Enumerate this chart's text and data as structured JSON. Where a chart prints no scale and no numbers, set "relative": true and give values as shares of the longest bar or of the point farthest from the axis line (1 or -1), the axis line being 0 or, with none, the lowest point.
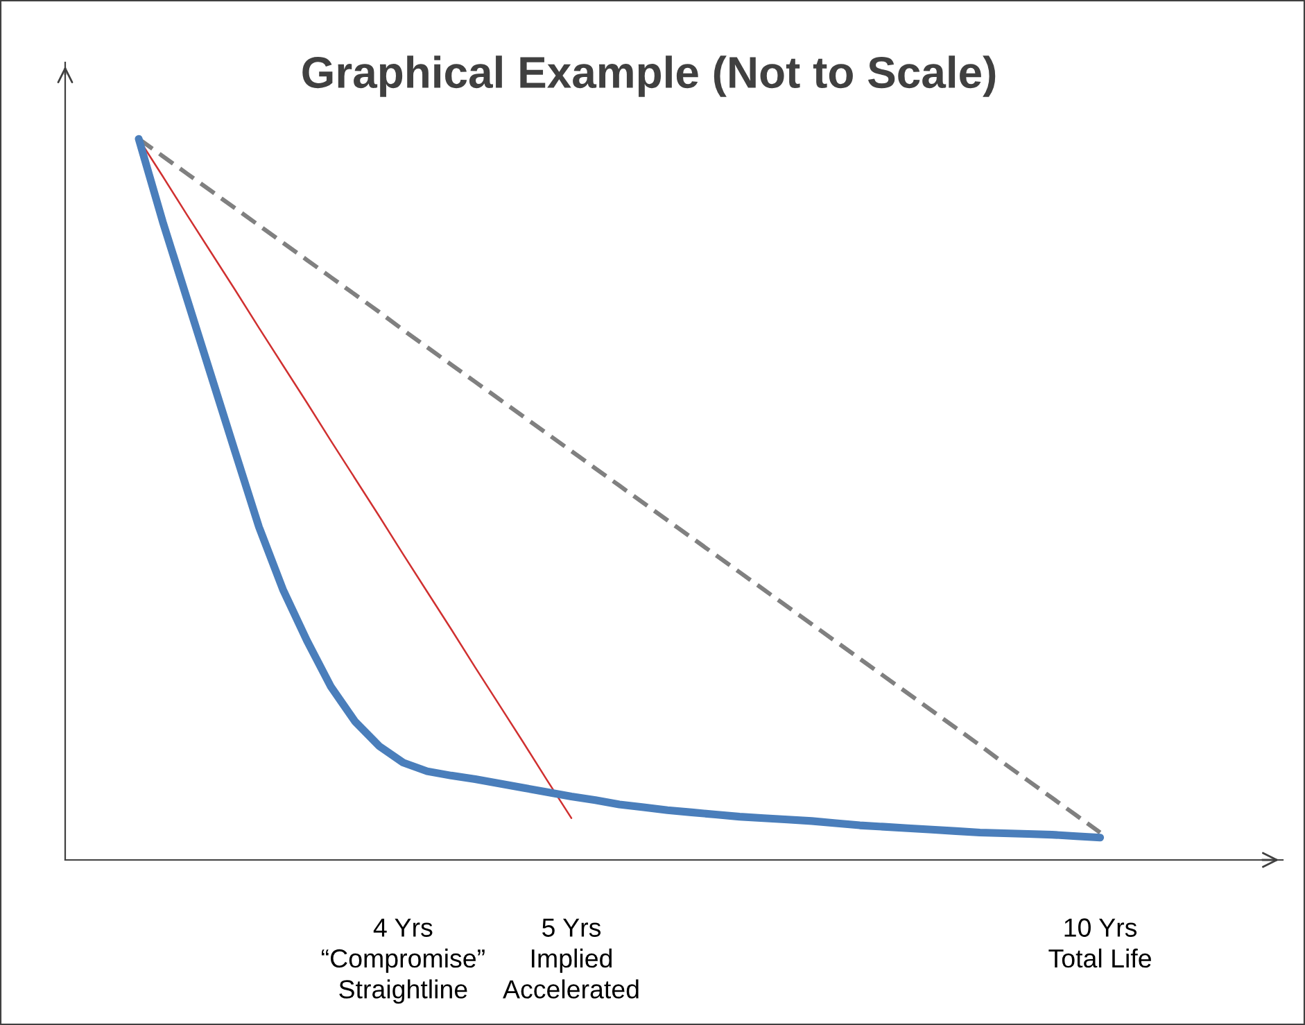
{
  "chart_data": {
    "type": "line",
    "title": "Graphical Example (Not to Scale)",
    "relative": true,
    "grid": false,
    "legend": false,
    "marker": "none",
    "categories": [
      null,
      null,
      null,
      null,
      null,
      null,
      null,
      null,
      null,
      null,
      null,
      "4 Yrs\n“Compromise”\nStraightline",
      null,
      null,
      null,
      null,
      null,
      null,
      "5 Yrs\nImplied\nAccelerated",
      null,
      null,
      null,
      null,
      null,
      null,
      null,
      null,
      null,
      null,
      null,
      null,
      null,
      null,
      null,
      null,
      null,
      null,
      null,
      null,
      null,
      "10 Yrs\nTotal Life"
    ],
    "series": [
      {
        "color": "#808080",
        "line_style": "dashed",
        "values": [
          1.0,
          0.976,
          0.952,
          0.928,
          0.904,
          0.88,
          0.856,
          0.832,
          0.808,
          0.784,
          0.76,
          0.735,
          0.711,
          0.687,
          0.663,
          0.639,
          0.615,
          0.591,
          0.567,
          0.543,
          0.519,
          0.495,
          0.471,
          0.447,
          0.423,
          0.399,
          0.375,
          0.351,
          0.327,
          0.303,
          0.279,
          0.255,
          0.231,
          0.207,
          0.183,
          0.159,
          0.134,
          0.11,
          0.086,
          0.062,
          0.038
        ]
      },
      {
        "color": "#d03030",
        "line_style": "solid",
        "values": [
          1.0,
          0.948,
          0.895,
          0.843,
          0.791,
          0.738,
          0.686,
          0.634,
          0.581,
          0.529,
          0.477,
          0.424,
          0.372,
          0.32,
          0.267,
          0.215,
          0.163,
          0.11,
          0.058,
          null,
          null,
          null,
          null,
          null,
          null,
          null,
          null,
          null,
          null,
          null,
          null,
          null,
          null,
          null,
          null,
          null,
          null,
          null,
          null,
          null,
          null
        ]
      },
      {
        "color": "#4a7ebb",
        "line_style": "solid",
        "values": [
          1.0,
          0.885,
          0.779,
          0.673,
          0.567,
          0.462,
          0.375,
          0.304,
          0.24,
          0.192,
          0.158,
          0.135,
          0.123,
          0.117,
          0.112,
          0.106,
          0.1,
          0.094,
          0.088,
          0.083,
          0.077,
          0.073,
          0.069,
          0.066,
          0.063,
          0.06,
          0.058,
          0.056,
          0.054,
          0.051,
          0.048,
          0.046,
          0.044,
          0.042,
          0.04,
          0.038,
          0.037,
          0.036,
          0.035,
          0.033,
          0.031
        ]
      }
    ]
  }
}
